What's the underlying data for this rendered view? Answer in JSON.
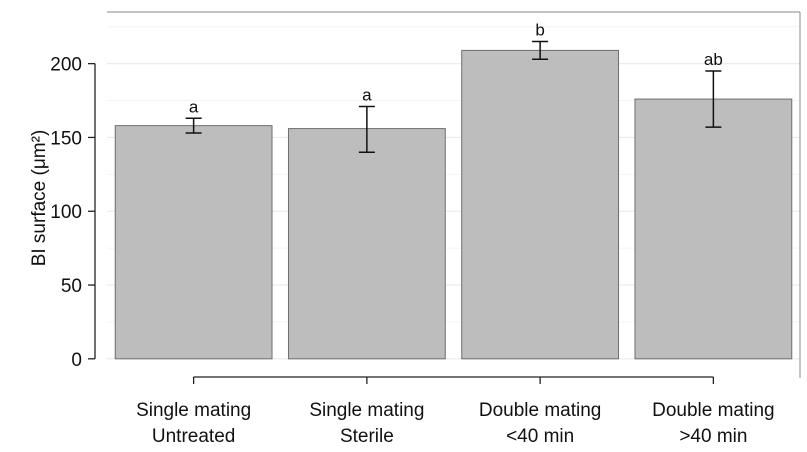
{
  "chart_data": {
    "type": "bar",
    "ylabel": "BI surface",
    "ylabel_unit": "(μm²)",
    "ylim": [
      -13,
      235
    ],
    "yticks": [
      0,
      50,
      100,
      150,
      200
    ],
    "grid": true,
    "categories": [
      [
        "Single mating",
        "Untreated"
      ],
      [
        "Single mating",
        "Sterile"
      ],
      [
        "Double mating",
        "<40 min"
      ],
      [
        "Double mating",
        ">40 min"
      ]
    ],
    "values": [
      158,
      156,
      209,
      176
    ],
    "error_low": [
      153,
      140,
      203,
      157
    ],
    "error_high": [
      163,
      171,
      215,
      195
    ],
    "significance": [
      "a",
      "a",
      "b",
      "ab"
    ],
    "bar_color": "#bdbdbd",
    "bar_edge_color": "#6e6e6e"
  }
}
